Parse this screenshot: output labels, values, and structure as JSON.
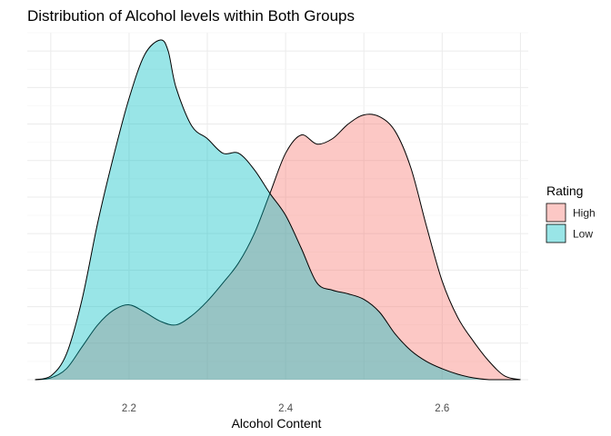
{
  "chart_data": {
    "type": "area",
    "title": "Distribution of Alcohol levels within Both Groups",
    "xlabel": "Alcohol Content",
    "ylabel": "",
    "xlim": [
      2.07,
      2.71
    ],
    "ylim": [
      0,
      9.5
    ],
    "x_ticks": [
      2.2,
      2.4,
      2.6
    ],
    "x_tick_labels": [
      "2.2",
      "2.4",
      "2.6"
    ],
    "y_ticks_shown": false,
    "grid": true,
    "legend": {
      "title": "Rating",
      "position": "right"
    },
    "series": [
      {
        "name": "High",
        "color": "#F8766D",
        "fill_opacity": 0.4,
        "x": [
          2.08,
          2.1,
          2.12,
          2.14,
          2.16,
          2.18,
          2.2,
          2.22,
          2.24,
          2.26,
          2.28,
          2.3,
          2.32,
          2.34,
          2.36,
          2.38,
          2.4,
          2.42,
          2.44,
          2.46,
          2.48,
          2.5,
          2.52,
          2.54,
          2.56,
          2.58,
          2.6,
          2.62,
          2.64,
          2.66,
          2.68,
          2.7
        ],
        "values": [
          0.0,
          0.05,
          0.3,
          0.9,
          1.5,
          1.9,
          2.05,
          1.85,
          1.6,
          1.5,
          1.75,
          2.15,
          2.65,
          3.2,
          4.0,
          5.1,
          6.2,
          6.7,
          6.45,
          6.6,
          7.0,
          7.25,
          7.2,
          6.8,
          5.8,
          4.2,
          2.7,
          1.7,
          1.05,
          0.5,
          0.1,
          0.0
        ]
      },
      {
        "name": "Low",
        "color": "#00BFC4",
        "fill_opacity": 0.4,
        "x": [
          2.08,
          2.1,
          2.12,
          2.14,
          2.16,
          2.18,
          2.2,
          2.22,
          2.24,
          2.25,
          2.26,
          2.28,
          2.3,
          2.32,
          2.34,
          2.36,
          2.38,
          2.4,
          2.42,
          2.44,
          2.46,
          2.48,
          2.5,
          2.52,
          2.54,
          2.56,
          2.58,
          2.6,
          2.62,
          2.64,
          2.66,
          2.68,
          2.7
        ],
        "values": [
          0.0,
          0.1,
          0.7,
          2.2,
          4.3,
          6.1,
          7.7,
          8.9,
          9.3,
          9.0,
          8.0,
          6.95,
          6.6,
          6.2,
          6.2,
          5.75,
          5.1,
          4.5,
          3.6,
          2.65,
          2.45,
          2.35,
          2.2,
          1.85,
          1.25,
          0.8,
          0.5,
          0.3,
          0.15,
          0.05,
          0.0,
          0.0,
          0.0
        ]
      }
    ]
  }
}
